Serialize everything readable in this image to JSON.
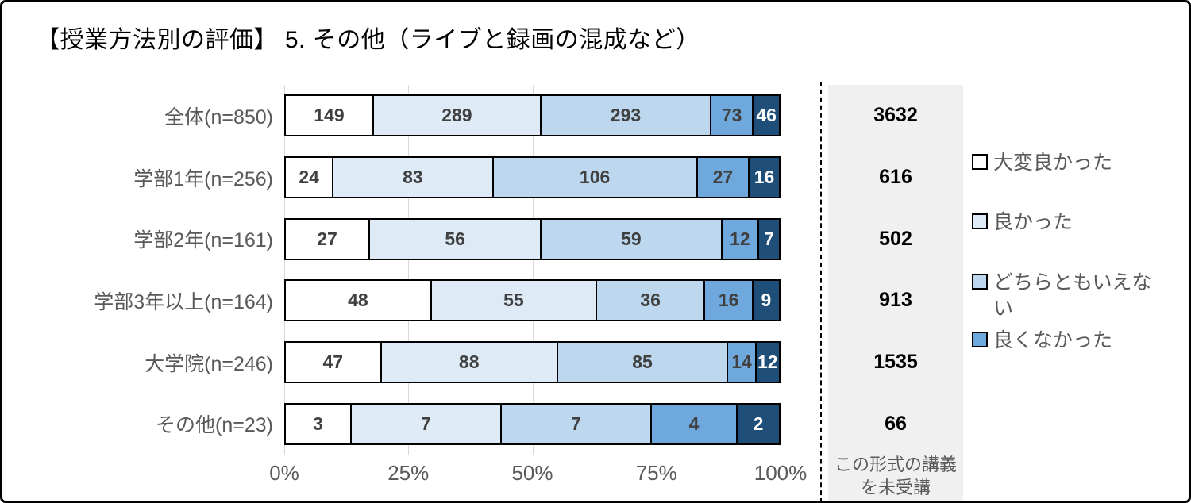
{
  "title": "【授業方法別の評価】 5. その他（ライブと録画の混成など）",
  "colors": {
    "series": [
      "#FFFFFF",
      "#DEEBF7",
      "#BDD7EE",
      "#6FA8DC",
      "#1F4E79"
    ],
    "value_label": "#404040",
    "value_label_on_dark": "#FFFFFF",
    "category_label": "#595959",
    "gridline": "#D9D9D9",
    "panel_background": "#F0F0F0",
    "border": "#000000"
  },
  "chart_data": {
    "type": "bar",
    "orientation": "horizontal",
    "stacked": true,
    "title": "【授業方法別の評価】 5. その他（ライブと録画の混成など）",
    "categories": [
      "全体(n=850)",
      "学部1年(n=256)",
      "学部2年(n=161)",
      "学部3年以上(n=164)",
      "大学院(n=246)",
      "その他(n=23)"
    ],
    "series": [
      {
        "name": "大変良かった",
        "color": "#FFFFFF",
        "values": [
          149,
          24,
          27,
          48,
          47,
          3
        ]
      },
      {
        "name": "良かった",
        "color": "#DEEBF7",
        "values": [
          289,
          83,
          56,
          55,
          88,
          7
        ]
      },
      {
        "name": "どちらともいえない",
        "color": "#BDD7EE",
        "values": [
          293,
          106,
          59,
          36,
          85,
          7
        ]
      },
      {
        "name": "良くなかった",
        "color": "#6FA8DC",
        "values": [
          73,
          27,
          12,
          16,
          14,
          4
        ]
      },
      {
        "name": "",
        "color": "#1F4E79",
        "values": [
          46,
          16,
          7,
          9,
          12,
          2
        ]
      }
    ],
    "x_ticks": [
      "0%",
      "25%",
      "50%",
      "75%",
      "100%"
    ],
    "xlim": [
      0,
      100
    ],
    "grid": true,
    "legend_position": "right",
    "not_attended": {
      "values": [
        3632,
        616,
        502,
        913,
        1535,
        66
      ],
      "caption_line1": "この形式の講義",
      "caption_line2": "を未受講"
    }
  },
  "legend": {
    "items": [
      {
        "label": "大変良かった",
        "color": "#FFFFFF"
      },
      {
        "label": "良かった",
        "color": "#DEEBF7"
      },
      {
        "label": "どちらともいえない",
        "color": "#BDD7EE"
      },
      {
        "label": "良くなかった",
        "color": "#6FA8DC"
      }
    ]
  }
}
